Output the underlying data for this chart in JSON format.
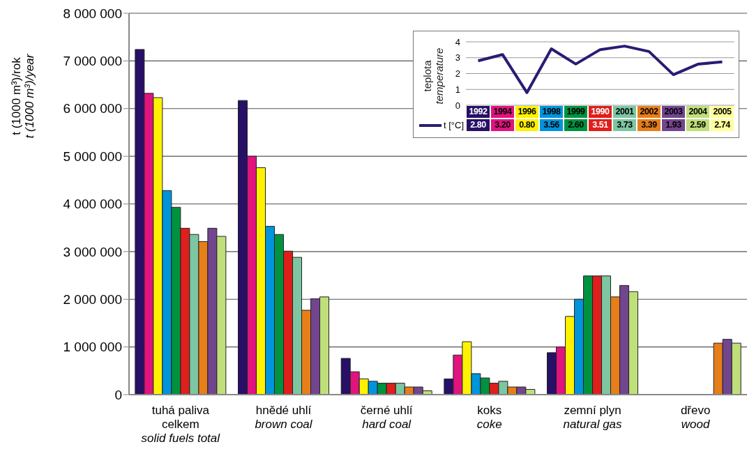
{
  "chart_data": [
    {
      "type": "bar",
      "ylabel": "t (1000 m³)/rok\nt (1000 m³)/year",
      "categories": [
        "tuhá paliva\ncelkem\nsolid fuels total",
        "hnědé uhlí\nbrown coal",
        "černé uhlí\nhard coal",
        "koks\ncoke",
        "zemní plyn\nnatural gas",
        "dřevo\nwood"
      ],
      "series": [
        {
          "color": "#271065",
          "values": [
            7240000,
            6170000,
            760000,
            330000,
            880000,
            null
          ]
        },
        {
          "color": "#e0137f",
          "values": [
            6320000,
            5000000,
            480000,
            830000,
            1000000,
            null
          ]
        },
        {
          "color": "#fff200",
          "values": [
            6230000,
            4760000,
            330000,
            1110000,
            1640000,
            null
          ]
        },
        {
          "color": "#0094dc",
          "values": [
            4280000,
            3530000,
            280000,
            440000,
            2000000,
            null
          ]
        },
        {
          "color": "#00923f",
          "values": [
            3930000,
            3360000,
            240000,
            350000,
            2490000,
            null
          ]
        },
        {
          "color": "#df1f1b",
          "values": [
            3490000,
            3010000,
            240000,
            240000,
            2490000,
            null
          ]
        },
        {
          "color": "#7cc6a2",
          "values": [
            3360000,
            2880000,
            240000,
            280000,
            2490000,
            null
          ]
        },
        {
          "color": "#e67e19",
          "values": [
            3210000,
            1770000,
            160000,
            160000,
            2050000,
            1080000
          ]
        },
        {
          "color": "#72458f",
          "values": [
            3490000,
            2010000,
            160000,
            160000,
            2290000,
            1160000
          ]
        },
        {
          "color": "#bfdf7a",
          "values": [
            3320000,
            2050000,
            80000,
            110000,
            2160000,
            1080000
          ]
        }
      ],
      "ylim": [
        0,
        8000000
      ],
      "yticks": [
        {
          "value": 0,
          "label": "0"
        },
        {
          "value": 1000000,
          "label": "1 000 000"
        },
        {
          "value": 2000000,
          "label": "2 000 000"
        },
        {
          "value": 3000000,
          "label": "3 000 000"
        },
        {
          "value": 4000000,
          "label": "4 000 000"
        },
        {
          "value": 5000000,
          "label": "5 000 000"
        },
        {
          "value": 6000000,
          "label": "6 000 000"
        },
        {
          "value": 7000000,
          "label": "7 000 000"
        },
        {
          "value": 8000000,
          "label": "8 000 000"
        }
      ],
      "grid": "y"
    },
    {
      "type": "line",
      "ylabel": "teplota\ntemperature",
      "categories": [
        "1992",
        "1994",
        "1996",
        "1998",
        "1999",
        "1990",
        "2001",
        "2002",
        "2003",
        "2004",
        "2005"
      ],
      "colors": [
        "#271065",
        "#e0137f",
        "#fff200",
        "#0094dc",
        "#00923f",
        "#df1f1b",
        "#7cc6a2",
        "#e67e19",
        "#72458f",
        "#bfdf7a",
        "#ffff99"
      ],
      "series": [
        {
          "name": "t [°C]",
          "color": "#2b1b74",
          "values": [
            2.8,
            3.2,
            0.8,
            3.56,
            2.6,
            3.51,
            3.73,
            3.39,
            1.93,
            2.59,
            2.74
          ],
          "value_labels": [
            "2.80",
            "3.20",
            "0.80",
            "3.56",
            "2.60",
            "3.51",
            "3.73",
            "3.39",
            "1.93",
            "2.59",
            "2.74"
          ]
        }
      ],
      "ylim": [
        0,
        4
      ],
      "yticks": [
        0,
        1,
        2,
        3,
        4
      ],
      "grid": "y",
      "legend": "bottom left",
      "marker": "none"
    }
  ]
}
